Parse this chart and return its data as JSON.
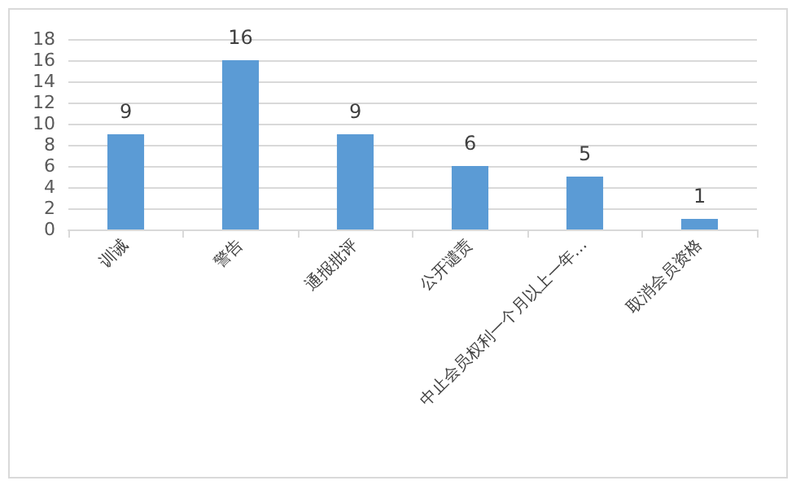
{
  "chart_data": {
    "type": "bar",
    "categories": [
      "训诫",
      "警告",
      "通报批评",
      "公开谴责",
      "中止会员权利一个月以上一年…",
      "取消会员资格"
    ],
    "values": [
      9,
      16,
      9,
      6,
      5,
      1
    ],
    "color": "#5b9bd5",
    "ylim": [
      0,
      18
    ],
    "yticks": [
      0,
      2,
      4,
      6,
      8,
      10,
      12,
      14,
      16,
      18
    ],
    "grid": "y",
    "data_labels": true
  }
}
